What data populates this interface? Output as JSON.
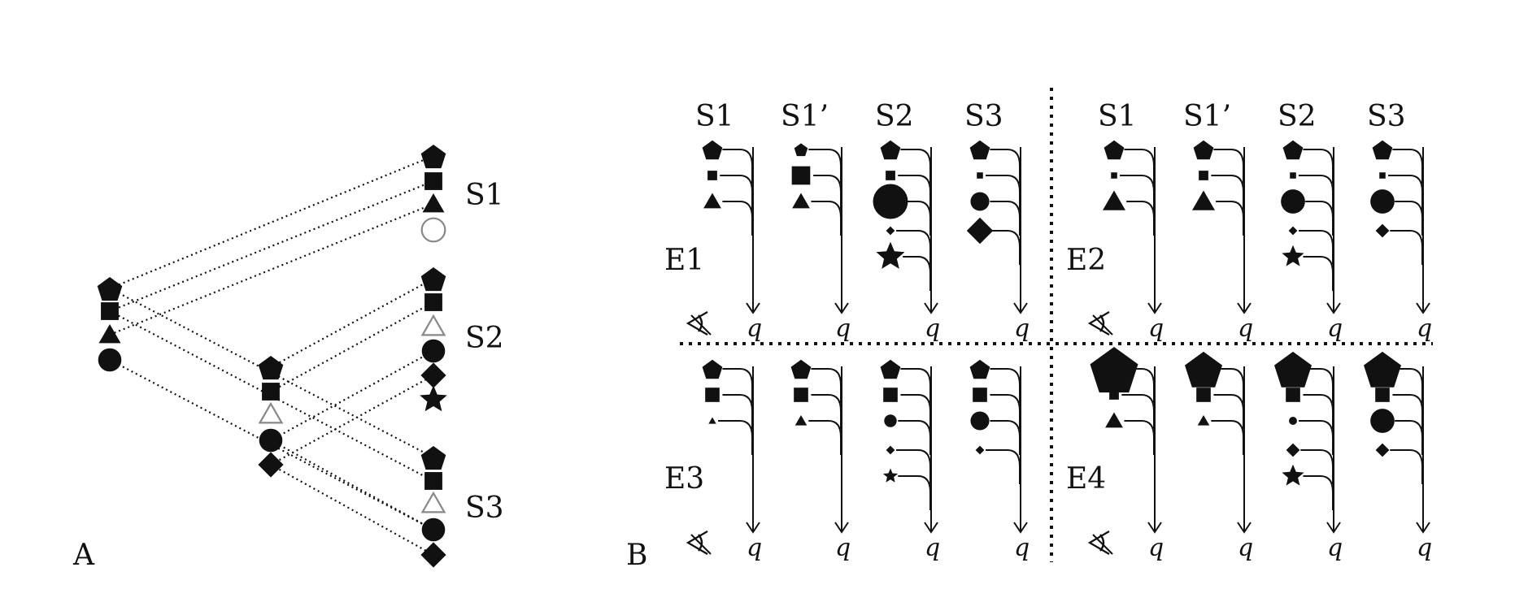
{
  "colors": {
    "ink": "#111111",
    "hollow": "#888888",
    "background": "#ffffff"
  },
  "panel_a": {
    "label": "A",
    "scene_labels": [
      "S1",
      "S2",
      "S3"
    ],
    "left_stack": [
      "pentagon",
      "square",
      "triangle",
      "circle"
    ],
    "middle_stack": [
      "pentagon",
      "square",
      "triangle-outline",
      "circle",
      "diamond"
    ],
    "scenes": [
      {
        "name": "S1",
        "shapes": [
          "pentagon",
          "square",
          "triangle",
          "circle-outline"
        ]
      },
      {
        "name": "S2",
        "shapes": [
          "pentagon",
          "square",
          "triangle-outline",
          "circle",
          "diamond",
          "star"
        ]
      },
      {
        "name": "S3",
        "shapes": [
          "pentagon",
          "square",
          "triangle-outline",
          "circle",
          "diamond"
        ]
      }
    ]
  },
  "panel_b": {
    "label": "B",
    "column_labels": [
      "S1",
      "S1’",
      "S2",
      "S3"
    ],
    "query_label": "q",
    "quadrants": [
      {
        "label": "E1",
        "columns": [
          [
            [
              "pentagon",
              "m"
            ],
            [
              "square",
              "s"
            ],
            [
              "triangle",
              "m"
            ]
          ],
          [
            [
              "pentagon",
              "s"
            ],
            [
              "square",
              "l"
            ],
            [
              "triangle",
              "m"
            ]
          ],
          [
            [
              "pentagon",
              "m"
            ],
            [
              "square",
              "s"
            ],
            [
              "circle",
              "xl"
            ],
            [
              "diamond",
              "xs"
            ],
            [
              "star",
              "l"
            ]
          ],
          [
            [
              "pentagon",
              "m"
            ],
            [
              "square",
              "xs"
            ],
            [
              "circle",
              "m"
            ],
            [
              "diamond",
              "l"
            ]
          ]
        ]
      },
      {
        "label": "E2",
        "columns": [
          [
            [
              "pentagon",
              "m"
            ],
            [
              "square",
              "xs"
            ],
            [
              "triangle",
              "l"
            ]
          ],
          [
            [
              "pentagon",
              "m"
            ],
            [
              "square",
              "s"
            ],
            [
              "triangle",
              "l"
            ]
          ],
          [
            [
              "pentagon",
              "m"
            ],
            [
              "square",
              "xs"
            ],
            [
              "circle",
              "l"
            ],
            [
              "diamond",
              "xs"
            ],
            [
              "star",
              "m"
            ]
          ],
          [
            [
              "pentagon",
              "m"
            ],
            [
              "square",
              "xs"
            ],
            [
              "circle",
              "l"
            ],
            [
              "diamond",
              "s"
            ]
          ]
        ]
      },
      {
        "label": "E3",
        "columns": [
          [
            [
              "pentagon",
              "m"
            ],
            [
              "square",
              "m"
            ],
            [
              "triangle",
              "xs"
            ]
          ],
          [
            [
              "pentagon",
              "m"
            ],
            [
              "square",
              "m"
            ],
            [
              "triangle",
              "s"
            ]
          ],
          [
            [
              "pentagon",
              "m"
            ],
            [
              "square",
              "m"
            ],
            [
              "circle",
              "s"
            ],
            [
              "diamond",
              "xs"
            ],
            [
              "star",
              "s"
            ]
          ],
          [
            [
              "pentagon",
              "m"
            ],
            [
              "square",
              "m"
            ],
            [
              "circle",
              "m"
            ],
            [
              "diamond",
              "xs"
            ]
          ]
        ]
      },
      {
        "label": "E4",
        "columns": [
          [
            [
              "pentagon",
              "xxl"
            ],
            [
              "square",
              "s"
            ],
            [
              "triangle",
              "m"
            ]
          ],
          [
            [
              "pentagon",
              "xl"
            ],
            [
              "square",
              "m"
            ],
            [
              "triangle",
              "s"
            ]
          ],
          [
            [
              "pentagon",
              "xl"
            ],
            [
              "square",
              "m"
            ],
            [
              "circle",
              "xs"
            ],
            [
              "diamond",
              "s"
            ],
            [
              "star",
              "m"
            ]
          ],
          [
            [
              "pentagon",
              "xl"
            ],
            [
              "square",
              "m"
            ],
            [
              "circle",
              "l"
            ],
            [
              "diamond",
              "s"
            ]
          ]
        ]
      }
    ]
  }
}
